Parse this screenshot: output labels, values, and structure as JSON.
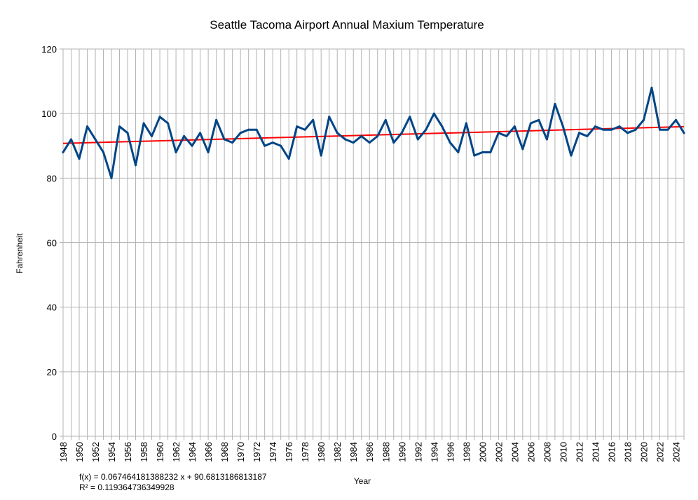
{
  "chart_data": {
    "type": "line",
    "title": "Seattle Tacoma Airport Annual Maxium Temperature",
    "xlabel": "Year",
    "ylabel": "Fahrenheit",
    "ylim": [
      0,
      120
    ],
    "yticks": [
      0,
      20,
      40,
      60,
      80,
      100,
      120
    ],
    "xlim": [
      1948,
      2025
    ],
    "xtick_labels": [
      "1948",
      "1950",
      "1952",
      "1954",
      "1956",
      "1958",
      "1960",
      "1962",
      "1964",
      "1966",
      "1968",
      "1970",
      "1972",
      "1974",
      "1976",
      "1978",
      "1980",
      "1982",
      "1984",
      "1986",
      "1988",
      "1990",
      "1992",
      "1994",
      "1996",
      "1998",
      "2000",
      "2002",
      "2004",
      "2006",
      "2008",
      "2010",
      "2012",
      "2014",
      "2016",
      "2018",
      "2020",
      "2022",
      "2024"
    ],
    "grid": true,
    "colors": {
      "series": "#004586",
      "trend": "#ff0000",
      "grid": "#b3b3b3"
    },
    "series": [
      {
        "x": [
          1948,
          1949,
          1950,
          1951,
          1952,
          1953,
          1954,
          1955,
          1956,
          1957,
          1958,
          1959,
          1960,
          1961,
          1962,
          1963,
          1964,
          1965,
          1966,
          1967,
          1968,
          1969,
          1970,
          1971,
          1972,
          1973,
          1974,
          1975,
          1976,
          1977,
          1978,
          1979,
          1980,
          1981,
          1982,
          1983,
          1984,
          1985,
          1986,
          1987,
          1988,
          1989,
          1990,
          1991,
          1992,
          1993,
          1994,
          1995,
          1996,
          1997,
          1998,
          1999,
          2000,
          2001,
          2002,
          2003,
          2004,
          2005,
          2006,
          2007,
          2008,
          2009,
          2010,
          2011,
          2012,
          2013,
          2014,
          2015,
          2016,
          2017,
          2018,
          2019,
          2020,
          2021,
          2022,
          2023,
          2024,
          2025
        ],
        "values": [
          88,
          92,
          86,
          96,
          92,
          88,
          80,
          96,
          94,
          84,
          97,
          93,
          99,
          97,
          88,
          93,
          90,
          94,
          88,
          98,
          92,
          91,
          94,
          95,
          95,
          90,
          91,
          90,
          86,
          96,
          95,
          98,
          87,
          99,
          94,
          92,
          91,
          93,
          91,
          93,
          98,
          91,
          94,
          99,
          92,
          95,
          100,
          96,
          91,
          88,
          97,
          87,
          88,
          88,
          94,
          93,
          96,
          89,
          97,
          98,
          92,
          103,
          96,
          87,
          94,
          93,
          96,
          95,
          95,
          96,
          94,
          95,
          98,
          108,
          95,
          95,
          98,
          94
        ]
      }
    ],
    "trendline": {
      "equation": "f(x) = 0.067464181388232 x + 90.6813186813187",
      "r_squared": "R² = 0.119364736349928",
      "slope": 0.067464181388232,
      "intercept": 90.6813186813187
    }
  }
}
